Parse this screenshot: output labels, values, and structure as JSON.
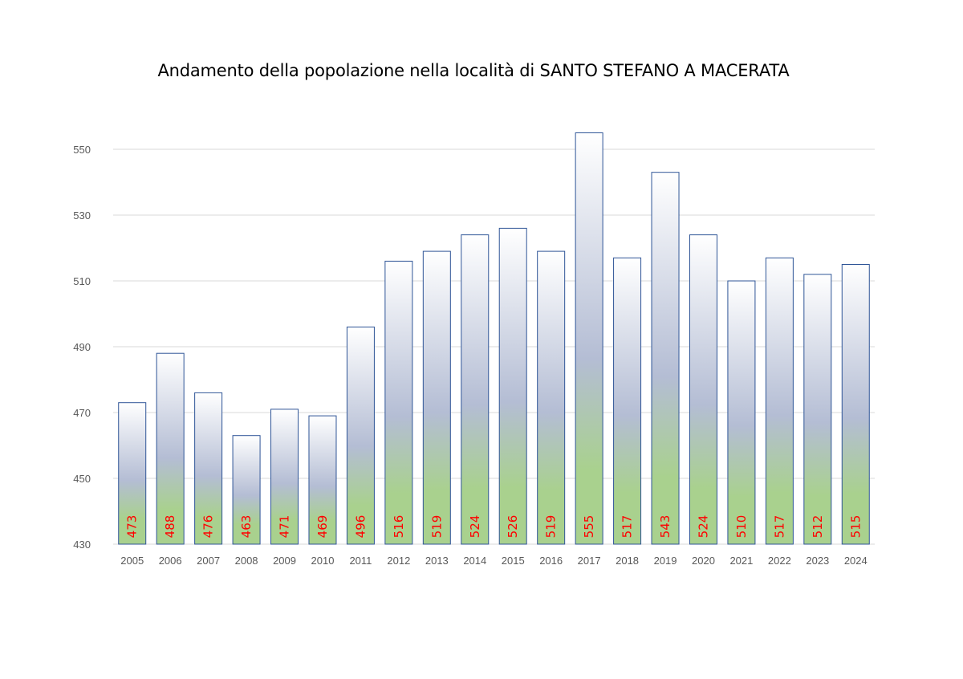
{
  "chart_data": {
    "type": "bar",
    "title": "Andamento della popolazione nella località di SANTO STEFANO A MACERATA",
    "xlabel": "",
    "ylabel": "",
    "categories": [
      "2005",
      "2006",
      "2007",
      "2008",
      "2009",
      "2010",
      "2011",
      "2012",
      "2013",
      "2014",
      "2015",
      "2016",
      "2017",
      "2018",
      "2019",
      "2020",
      "2021",
      "2022",
      "2023",
      "2024"
    ],
    "values": [
      473,
      488,
      476,
      463,
      471,
      469,
      496,
      516,
      519,
      524,
      526,
      519,
      555,
      517,
      543,
      524,
      510,
      517,
      512,
      515
    ],
    "data_labels": [
      "473",
      "488",
      "476",
      "463",
      "471",
      "469",
      "496",
      "516",
      "519",
      "524",
      "526",
      "519",
      "555",
      "517",
      "543",
      "524",
      "510",
      "517",
      "512",
      "515"
    ],
    "ylim": [
      430,
      560
    ],
    "yticks": [
      430,
      450,
      470,
      490,
      510,
      530,
      550
    ],
    "ytick_labels": [
      "430",
      "450",
      "470",
      "490",
      "510",
      "530",
      "550"
    ],
    "grid": "horizontal",
    "legend": "none",
    "colors": {
      "bar_border": "#2f5597",
      "bar_top": "#ffffff",
      "bar_mid": "#b4bdd4",
      "bar_bottom": "#a9d18e",
      "data_label": "#ff0000",
      "grid": "#d9d9d9",
      "tick_label": "#595959"
    }
  }
}
